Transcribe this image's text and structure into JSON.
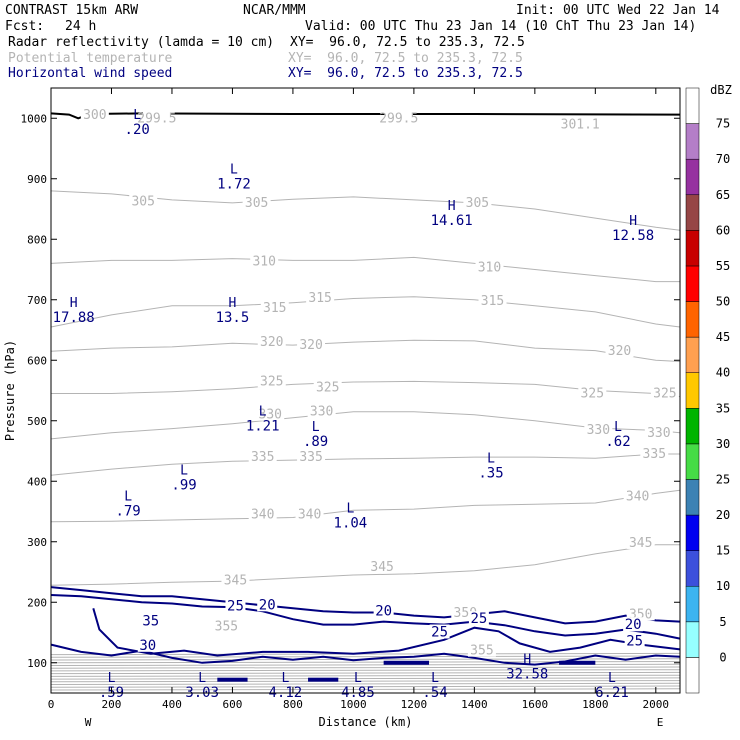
{
  "header": {
    "model": "CONTRAST 15km ARW",
    "center": "NCAR/MMM",
    "init": "Init: 00 UTC Wed 22 Jan 14",
    "fcst_label": "Fcst:",
    "fcst_value": "24 h",
    "valid": "Valid: 00 UTC Thu 23 Jan 14 (10 ChT Thu 23 Jan 14)",
    "fields": [
      {
        "name": "Radar reflectivity (lamda = 10 cm)",
        "xy": "XY=  96.0, 72.5 to 235.3, 72.5",
        "color": "#000000"
      },
      {
        "name": "Potential temperature",
        "xy": "XY=  96.0, 72.5 to 235.3, 72.5",
        "color": "#b4b4b4"
      },
      {
        "name": "Horizontal wind speed",
        "xy": "XY=  96.0, 72.5 to 235.3, 72.5",
        "color": "#000080"
      }
    ]
  },
  "chart_data": {
    "type": "cross-section",
    "xlabel": "Distance (km)",
    "ylabel": "Pressure (hPa)",
    "xlim": [
      0,
      2080
    ],
    "ylim": [
      1050,
      50
    ],
    "x_ticks": [
      0,
      200,
      400,
      600,
      800,
      1000,
      1200,
      1400,
      1600,
      1800,
      2000
    ],
    "y_ticks": [
      100,
      200,
      300,
      400,
      500,
      600,
      700,
      800,
      900,
      1000
    ],
    "x_end_labels": {
      "left": "W",
      "right": "E"
    },
    "colorbar": {
      "unit": "dBZ",
      "levels": [
        0,
        5,
        10,
        15,
        20,
        25,
        30,
        35,
        40,
        45,
        50,
        55,
        60,
        65,
        70,
        75
      ],
      "colors": [
        "#ffffff",
        "#96ffff",
        "#3cb4f0",
        "#3c50dc",
        "#0000f0",
        "#3c82b4",
        "#46dc46",
        "#00b400",
        "#ffc800",
        "#ffa050",
        "#ff6400",
        "#ff0000",
        "#c80000",
        "#964646",
        "#9632a0",
        "#b47ec8",
        "#ffffff"
      ]
    },
    "theta_labels": [
      {
        "x": 1425,
        "p": 120,
        "v": "355"
      },
      {
        "x": 580,
        "p": 160,
        "v": "355"
      },
      {
        "x": 1370,
        "p": 182,
        "v": "350"
      },
      {
        "x": 1950,
        "p": 180,
        "v": "350"
      },
      {
        "x": 610,
        "p": 236,
        "v": "345"
      },
      {
        "x": 1095,
        "p": 258,
        "v": "345"
      },
      {
        "x": 1950,
        "p": 298,
        "v": "345"
      },
      {
        "x": 700,
        "p": 345,
        "v": "340"
      },
      {
        "x": 855,
        "p": 345,
        "v": "340"
      },
      {
        "x": 1940,
        "p": 375,
        "v": "340"
      },
      {
        "x": 700,
        "p": 440,
        "v": "335"
      },
      {
        "x": 860,
        "p": 440,
        "v": "335"
      },
      {
        "x": 1995,
        "p": 445,
        "v": "335"
      },
      {
        "x": 725,
        "p": 510,
        "v": "330"
      },
      {
        "x": 895,
        "p": 515,
        "v": "330"
      },
      {
        "x": 1810,
        "p": 485,
        "v": "330"
      },
      {
        "x": 2010,
        "p": 480,
        "v": "330"
      },
      {
        "x": 730,
        "p": 565,
        "v": "325"
      },
      {
        "x": 915,
        "p": 555,
        "v": "325"
      },
      {
        "x": 1790,
        "p": 545,
        "v": "325"
      },
      {
        "x": 2030,
        "p": 545,
        "v": "325"
      },
      {
        "x": 730,
        "p": 630,
        "v": "320"
      },
      {
        "x": 860,
        "p": 625,
        "v": "320"
      },
      {
        "x": 1880,
        "p": 615,
        "v": "320"
      },
      {
        "x": 740,
        "p": 686,
        "v": "315"
      },
      {
        "x": 890,
        "p": 703,
        "v": "315"
      },
      {
        "x": 1460,
        "p": 698,
        "v": "315"
      },
      {
        "x": 705,
        "p": 763,
        "v": "310"
      },
      {
        "x": 1450,
        "p": 753,
        "v": "310"
      },
      {
        "x": 305,
        "p": 862,
        "v": "305"
      },
      {
        "x": 680,
        "p": 860,
        "v": "305"
      },
      {
        "x": 1410,
        "p": 860,
        "v": "305"
      },
      {
        "x": 350,
        "p": 1000,
        "v": "299.5"
      },
      {
        "x": 1150,
        "p": 1000,
        "v": "299.5"
      },
      {
        "x": 1750,
        "p": 990,
        "v": "301.1"
      },
      {
        "x": 145,
        "p": 1005,
        "v": "300"
      }
    ],
    "wind_labels": [
      {
        "x": 320,
        "p": 128,
        "v": "30"
      },
      {
        "x": 330,
        "p": 168,
        "v": "35"
      },
      {
        "x": 610,
        "p": 193,
        "v": "25"
      },
      {
        "x": 715,
        "p": 195,
        "v": "20"
      },
      {
        "x": 1100,
        "p": 185,
        "v": "20"
      },
      {
        "x": 1285,
        "p": 150,
        "v": "25"
      },
      {
        "x": 1415,
        "p": 172,
        "v": "25"
      },
      {
        "x": 1930,
        "p": 135,
        "v": "25"
      },
      {
        "x": 1925,
        "p": 162,
        "v": "20"
      }
    ],
    "extrema": [
      {
        "type": "L",
        "x": 200,
        "p": 75,
        "v": ".59"
      },
      {
        "type": "L",
        "x": 500,
        "p": 75,
        "v": "3.03"
      },
      {
        "type": "L",
        "x": 775,
        "p": 75,
        "v": "4.12"
      },
      {
        "type": "L",
        "x": 1015,
        "p": 75,
        "v": "4.85"
      },
      {
        "type": "L",
        "x": 1270,
        "p": 75,
        "v": ".54"
      },
      {
        "type": "H",
        "x": 1575,
        "p": 105,
        "v": "32.58"
      },
      {
        "type": "L",
        "x": 1855,
        "p": 75,
        "v": "6.21"
      },
      {
        "type": "L",
        "x": 255,
        "p": 375,
        "v": ".79"
      },
      {
        "type": "L",
        "x": 440,
        "p": 418,
        "v": ".99"
      },
      {
        "type": "L",
        "x": 990,
        "p": 355,
        "v": "1.04"
      },
      {
        "type": "L",
        "x": 1455,
        "p": 438,
        "v": ".35"
      },
      {
        "type": "L",
        "x": 875,
        "p": 490,
        "v": ".89"
      },
      {
        "type": "L",
        "x": 700,
        "p": 515,
        "v": "1.21"
      },
      {
        "type": "L",
        "x": 1875,
        "p": 490,
        "v": ".62"
      },
      {
        "type": "H",
        "x": 75,
        "p": 695,
        "v": "17.88"
      },
      {
        "type": "H",
        "x": 600,
        "p": 695,
        "v": "13.5"
      },
      {
        "type": "H",
        "x": 1325,
        "p": 855,
        "v": "14.61"
      },
      {
        "type": "H",
        "x": 1925,
        "p": 830,
        "v": "12.58"
      },
      {
        "type": "L",
        "x": 605,
        "p": 915,
        "v": "1.72"
      },
      {
        "type": "L",
        "x": 285,
        "p": 1005,
        "v": ".20"
      }
    ],
    "wind_contours": [
      {
        "level": 30,
        "points": [
          [
            0,
            130
          ],
          [
            100,
            118
          ],
          [
            200,
            112
          ],
          [
            300,
            120
          ],
          [
            400,
            108
          ],
          [
            500,
            100
          ],
          [
            600,
            103
          ],
          [
            700,
            110
          ],
          [
            800,
            105
          ],
          [
            900,
            110
          ],
          [
            1000,
            104
          ],
          [
            1100,
            108
          ],
          [
            1200,
            110
          ],
          [
            1300,
            115
          ],
          [
            1400,
            108
          ],
          [
            1500,
            100
          ],
          [
            1600,
            97
          ],
          [
            1700,
            102
          ],
          [
            1800,
            112
          ],
          [
            1900,
            105
          ],
          [
            2000,
            112
          ],
          [
            2080,
            110
          ]
        ]
      },
      {
        "level": 25,
        "points": [
          [
            140,
            190
          ],
          [
            160,
            155
          ],
          [
            220,
            125
          ],
          [
            330,
            115
          ],
          [
            440,
            120
          ],
          [
            550,
            112
          ],
          [
            700,
            118
          ],
          [
            850,
            118
          ],
          [
            1000,
            115
          ],
          [
            1150,
            120
          ],
          [
            1300,
            138
          ],
          [
            1400,
            158
          ],
          [
            1480,
            152
          ],
          [
            1550,
            132
          ],
          [
            1650,
            118
          ],
          [
            1750,
            125
          ],
          [
            1850,
            138
          ],
          [
            1950,
            130
          ],
          [
            2080,
            122
          ]
        ]
      },
      {
        "level": 20,
        "points": [
          [
            0,
            212
          ],
          [
            100,
            210
          ],
          [
            200,
            205
          ],
          [
            300,
            200
          ],
          [
            400,
            198
          ],
          [
            500,
            193
          ],
          [
            600,
            192
          ],
          [
            700,
            185
          ],
          [
            800,
            172
          ],
          [
            900,
            163
          ],
          [
            1000,
            163
          ],
          [
            1100,
            168
          ],
          [
            1200,
            165
          ],
          [
            1300,
            163
          ],
          [
            1400,
            168
          ],
          [
            1500,
            162
          ],
          [
            1600,
            152
          ],
          [
            1700,
            145
          ],
          [
            1800,
            148
          ],
          [
            1900,
            155
          ],
          [
            2000,
            148
          ],
          [
            2080,
            140
          ]
        ]
      },
      {
        "level": 20,
        "points": [
          [
            0,
            225
          ],
          [
            100,
            220
          ],
          [
            200,
            215
          ],
          [
            300,
            210
          ],
          [
            400,
            210
          ],
          [
            500,
            205
          ],
          [
            600,
            200
          ],
          [
            700,
            195
          ],
          [
            800,
            190
          ],
          [
            900,
            185
          ],
          [
            1000,
            183
          ],
          [
            1100,
            183
          ],
          [
            1200,
            178
          ],
          [
            1300,
            175
          ],
          [
            1400,
            180
          ],
          [
            1500,
            185
          ],
          [
            1600,
            175
          ],
          [
            1700,
            165
          ],
          [
            1800,
            168
          ],
          [
            1900,
            178
          ],
          [
            2000,
            170
          ],
          [
            2080,
            168
          ]
        ]
      }
    ],
    "theta_contours": [
      {
        "level": 345,
        "points": [
          [
            0,
            228
          ],
          [
            200,
            230
          ],
          [
            400,
            233
          ],
          [
            600,
            235
          ],
          [
            800,
            240
          ],
          [
            1000,
            245
          ],
          [
            1200,
            247
          ],
          [
            1400,
            252
          ],
          [
            1600,
            262
          ],
          [
            1800,
            280
          ],
          [
            2000,
            295
          ],
          [
            2080,
            295
          ]
        ]
      },
      {
        "level": 340,
        "points": [
          [
            0,
            333
          ],
          [
            200,
            334
          ],
          [
            400,
            336
          ],
          [
            600,
            338
          ],
          [
            800,
            340
          ],
          [
            1000,
            352
          ],
          [
            1200,
            354
          ],
          [
            1400,
            360
          ],
          [
            1600,
            362
          ],
          [
            1800,
            364
          ],
          [
            2000,
            380
          ],
          [
            2080,
            385
          ]
        ]
      },
      {
        "level": 335,
        "points": [
          [
            0,
            410
          ],
          [
            200,
            420
          ],
          [
            400,
            428
          ],
          [
            600,
            433
          ],
          [
            800,
            435
          ],
          [
            1000,
            437
          ],
          [
            1200,
            438
          ],
          [
            1400,
            440
          ],
          [
            1600,
            440
          ],
          [
            1800,
            438
          ],
          [
            2000,
            445
          ],
          [
            2080,
            445
          ]
        ]
      },
      {
        "level": 330,
        "points": [
          [
            0,
            470
          ],
          [
            200,
            480
          ],
          [
            400,
            487
          ],
          [
            600,
            495
          ],
          [
            800,
            505
          ],
          [
            1000,
            515
          ],
          [
            1200,
            515
          ],
          [
            1400,
            510
          ],
          [
            1600,
            500
          ],
          [
            1800,
            488
          ],
          [
            2000,
            484
          ],
          [
            2080,
            480
          ]
        ]
      },
      {
        "level": 325,
        "points": [
          [
            0,
            545
          ],
          [
            200,
            545
          ],
          [
            400,
            548
          ],
          [
            600,
            553
          ],
          [
            800,
            560
          ],
          [
            1000,
            564
          ],
          [
            1200,
            565
          ],
          [
            1400,
            563
          ],
          [
            1600,
            560
          ],
          [
            1800,
            550
          ],
          [
            2000,
            545
          ],
          [
            2080,
            540
          ]
        ]
      },
      {
        "level": 320,
        "points": [
          [
            0,
            615
          ],
          [
            200,
            620
          ],
          [
            400,
            622
          ],
          [
            600,
            628
          ],
          [
            800,
            625
          ],
          [
            1000,
            630
          ],
          [
            1200,
            633
          ],
          [
            1400,
            632
          ],
          [
            1600,
            620
          ],
          [
            1800,
            616
          ],
          [
            2000,
            600
          ],
          [
            2080,
            598
          ]
        ]
      },
      {
        "level": 315,
        "points": [
          [
            0,
            655
          ],
          [
            200,
            675
          ],
          [
            400,
            690
          ],
          [
            600,
            690
          ],
          [
            800,
            695
          ],
          [
            1000,
            702
          ],
          [
            1200,
            705
          ],
          [
            1400,
            700
          ],
          [
            1600,
            690
          ],
          [
            1800,
            680
          ],
          [
            2000,
            660
          ],
          [
            2080,
            655
          ]
        ]
      },
      {
        "level": 310,
        "points": [
          [
            0,
            760
          ],
          [
            200,
            765
          ],
          [
            400,
            765
          ],
          [
            600,
            768
          ],
          [
            800,
            765
          ],
          [
            1000,
            765
          ],
          [
            1200,
            770
          ],
          [
            1400,
            760
          ],
          [
            1600,
            750
          ],
          [
            1800,
            740
          ],
          [
            2000,
            730
          ],
          [
            2080,
            730
          ]
        ]
      },
      {
        "level": 305,
        "points": [
          [
            0,
            880
          ],
          [
            200,
            875
          ],
          [
            400,
            865
          ],
          [
            600,
            860
          ],
          [
            800,
            866
          ],
          [
            1000,
            870
          ],
          [
            1200,
            865
          ],
          [
            1400,
            860
          ],
          [
            1600,
            850
          ],
          [
            1800,
            835
          ],
          [
            2000,
            820
          ],
          [
            2080,
            815
          ]
        ]
      }
    ]
  }
}
